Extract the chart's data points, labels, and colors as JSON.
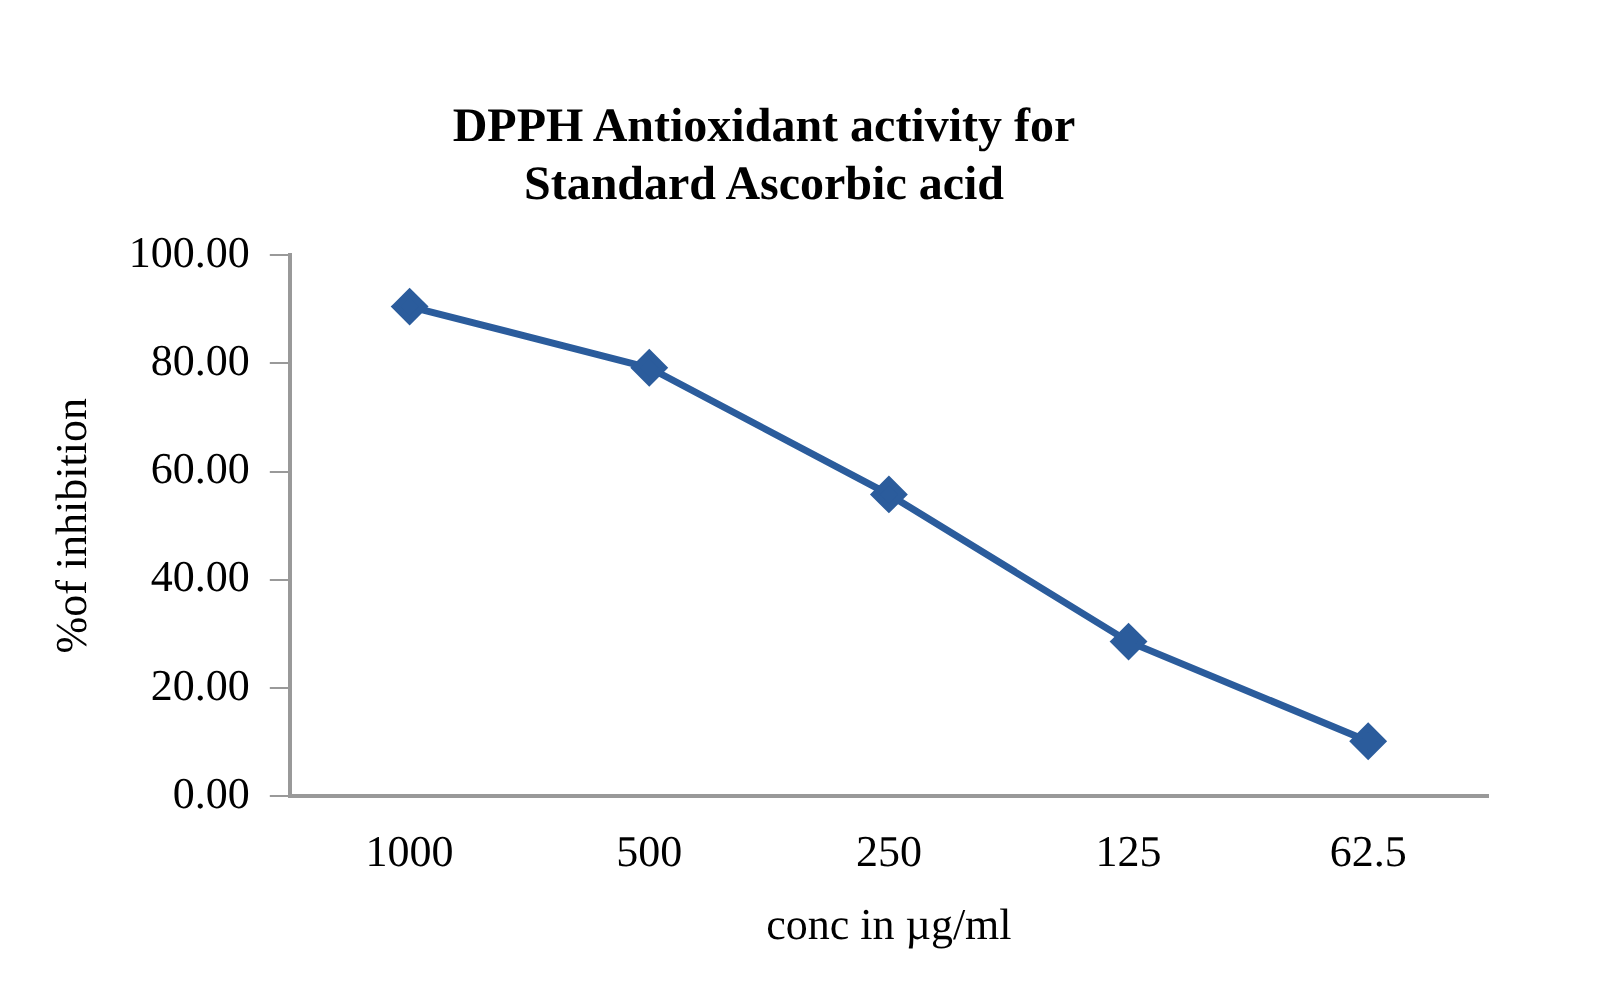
{
  "chart_data": {
    "type": "line",
    "title": [
      "DPPH Antioxidant activity for",
      "Standard Ascorbic acid"
    ],
    "xlabel": "conc in µg/ml",
    "ylabel": "%of inhibition",
    "categories": [
      "1000",
      "500",
      "250",
      "125",
      "62.5"
    ],
    "series": [
      {
        "color": "#2b5c9c",
        "values": [
          90.5,
          79.2,
          55.8,
          28.6,
          10.2
        ]
      }
    ],
    "ylim": [
      0,
      100
    ],
    "yticks": [
      {
        "value": 0,
        "label": "0.00"
      },
      {
        "value": 20,
        "label": "20.00"
      },
      {
        "value": 40,
        "label": "40.00"
      },
      {
        "value": 60,
        "label": "60.00"
      },
      {
        "value": 80,
        "label": "80.00"
      },
      {
        "value": 100,
        "label": "100.00"
      }
    ],
    "grid": false,
    "legend": false,
    "marker": "diamond",
    "line_style": "solid"
  }
}
